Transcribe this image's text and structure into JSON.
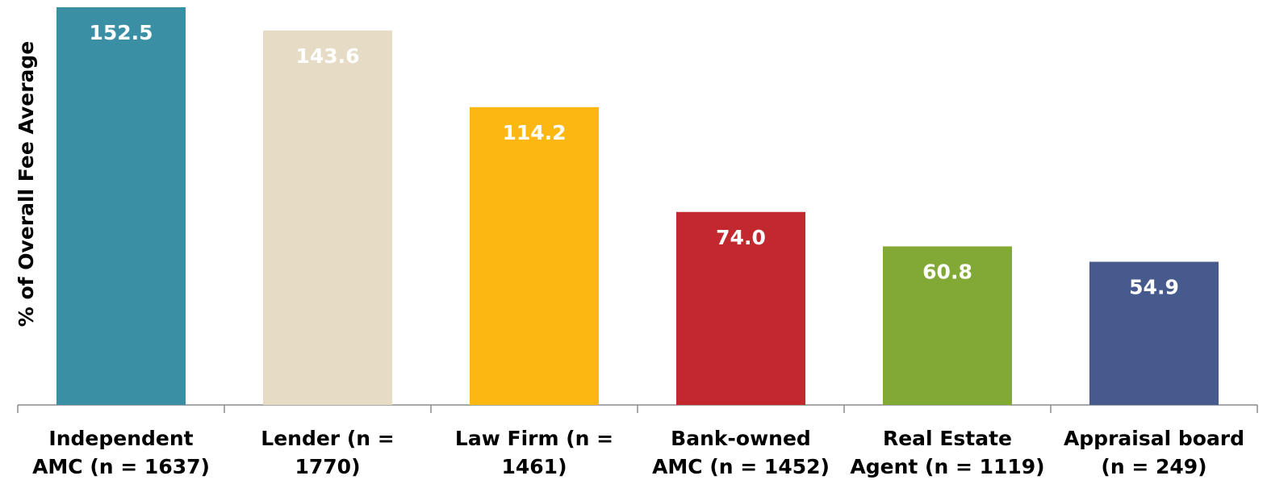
{
  "chart_data": {
    "type": "bar",
    "y_axis_label": "% of Overall Fee Average",
    "categories": [
      "Independent\nAMC (n = 1637)",
      "Lender (n =\n1770)",
      "Law Firm (n =\n1461)",
      "Bank-owned\nAMC (n = 1452)",
      "Real Estate\nAgent (n = 1119)",
      "Appraisal board\n(n = 249)"
    ],
    "values": [
      152.5,
      143.6,
      114.2,
      74.0,
      60.8,
      54.9
    ],
    "value_labels": [
      "152.5",
      "143.6",
      "114.2",
      "74.0",
      "60.8",
      "54.9"
    ],
    "colors": [
      "#3a8fa5",
      "#e6dcc6",
      "#fdb713",
      "#c1292e",
      "#82a935",
      "#475a8d"
    ],
    "grid": false
  }
}
